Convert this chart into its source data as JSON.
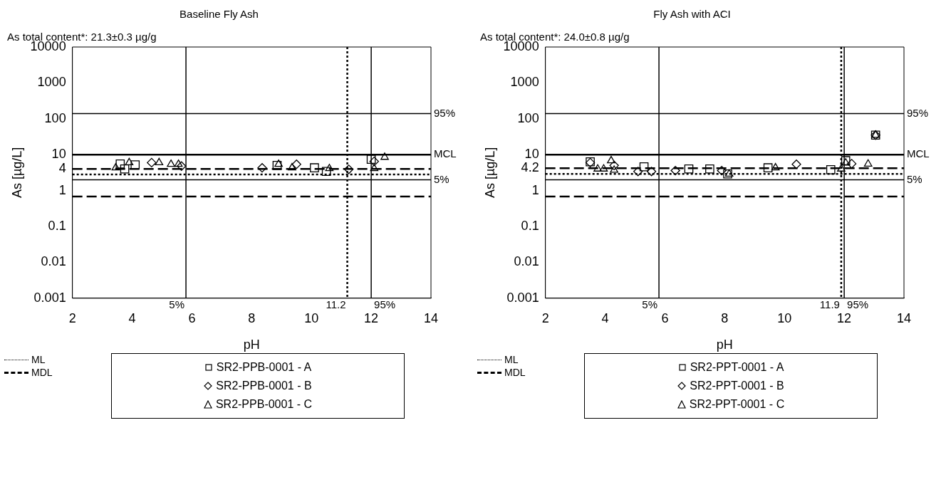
{
  "chart_data": [
    {
      "type": "scatter",
      "title": "Baseline Fly Ash",
      "subtitle": "As total content*: 21.3±0.3 µg/g",
      "xlabel": "pH",
      "ylabel": "As [µg/L]",
      "xlim": [
        2,
        14
      ],
      "xticks": [
        2,
        4,
        6,
        8,
        10,
        12,
        14
      ],
      "ylim": [
        0.001,
        10000
      ],
      "yticks": [
        0.001,
        0.01,
        0.1,
        1,
        4,
        10,
        100,
        1000,
        10000
      ],
      "log": "y",
      "grid": false,
      "legend": "bottom",
      "annotations": [
        "95%",
        "5%",
        "5%",
        "95%"
      ],
      "series": [
        {
          "name": "SR2-PPB-0001 - A",
          "color": "#000000",
          "marker": "square",
          "x": [
            3.75,
            4.1,
            3.6,
            8.85,
            10.1,
            10.5,
            12.0
          ],
          "values": [
            4.0,
            5.2,
            5.5,
            5.0,
            4.3,
            3.4,
            7.4
          ]
        },
        {
          "name": "SR2-PPB-0001 - B",
          "color": "#000000",
          "marker": "diamond",
          "x": [
            4.65,
            5.65,
            8.35,
            9.5,
            11.25,
            12.1
          ],
          "values": [
            6.0,
            4.8,
            4.3,
            5.4,
            3.9,
            6.5
          ]
        },
        {
          "name": "SR2-PPB-0001 - C",
          "color": "#000000",
          "marker": "triangle",
          "x": [
            3.45,
            3.9,
            4.9,
            5.3,
            5.55,
            8.9,
            9.35,
            10.6,
            12.1,
            12.45
          ],
          "values": [
            4.3,
            6.0,
            6.0,
            5.4,
            5.4,
            5.4,
            4.3,
            4.1,
            4.1,
            8.5
          ]
        }
      ],
      "ref_lines": [
        {
          "axis": "y",
          "value": 140,
          "line_style": "solid"
        },
        {
          "axis": "y",
          "value": 10,
          "label": "MCL",
          "line_style": "solid"
        },
        {
          "axis": "y",
          "value": 4,
          "line_style": "dashed"
        },
        {
          "axis": "y",
          "value": 2.8,
          "label": "ML",
          "line_style": "dotted"
        },
        {
          "axis": "y",
          "value": 2,
          "line_style": "solid"
        },
        {
          "axis": "y",
          "value": 0.68,
          "label": "MDL",
          "line_style": "dashed"
        },
        {
          "axis": "x",
          "value": 5.8,
          "line_style": "solid"
        },
        {
          "axis": "x",
          "value": 11.2,
          "label": "11.2",
          "line_style": "dotted"
        },
        {
          "axis": "x",
          "value": 12,
          "line_style": "solid"
        }
      ]
    },
    {
      "type": "scatter",
      "title": "Fly Ash with ACI",
      "subtitle": "As total content*: 24.0±0.8 µg/g",
      "xlabel": "pH",
      "ylabel": "As [µg/L]",
      "xlim": [
        2,
        14
      ],
      "xticks": [
        2,
        4,
        6,
        8,
        10,
        12,
        14
      ],
      "ylim": [
        0.001,
        10000
      ],
      "yticks": [
        0.001,
        0.01,
        0.1,
        1,
        4.2,
        10,
        100,
        1000,
        10000
      ],
      "log": "y",
      "grid": false,
      "legend": "bottom",
      "annotations": [
        "95%",
        "5%",
        "5%",
        "95%"
      ],
      "series": [
        {
          "name": "SR2-PPT-0001 - A",
          "color": "#000000",
          "marker": "square",
          "x": [
            3.5,
            5.3,
            6.8,
            7.5,
            8.1,
            9.45,
            11.55,
            12.05,
            13.05
          ],
          "values": [
            6.3,
            4.6,
            4.0,
            4.0,
            2.9,
            4.3,
            3.8,
            6.8,
            35
          ]
        },
        {
          "name": "SR2-PPT-0001 - B",
          "color": "#000000",
          "marker": "diamond",
          "x": [
            3.5,
            4.3,
            5.1,
            5.55,
            6.35,
            7.9,
            10.4,
            12.25,
            13.05
          ],
          "values": [
            6.0,
            5.0,
            3.4,
            3.4,
            3.6,
            3.6,
            5.4,
            5.6,
            35
          ]
        },
        {
          "name": "SR2-PPT-0001 - C",
          "color": "#000000",
          "marker": "triangle",
          "x": [
            3.75,
            3.95,
            4.2,
            4.3,
            8.15,
            9.7,
            11.9,
            12.05,
            12.8,
            13.05
          ],
          "values": [
            4.0,
            4.0,
            6.8,
            3.7,
            2.9,
            4.3,
            4.0,
            5.9,
            5.5,
            35
          ]
        }
      ],
      "ref_lines": [
        {
          "axis": "y",
          "value": 140,
          "line_style": "solid"
        },
        {
          "axis": "y",
          "value": 10,
          "label": "MCL",
          "line_style": "solid"
        },
        {
          "axis": "y",
          "value": 4.2,
          "line_style": "dashed"
        },
        {
          "axis": "y",
          "value": 2.9,
          "label": "ML",
          "line_style": "dotted"
        },
        {
          "axis": "y",
          "value": 2,
          "line_style": "solid"
        },
        {
          "axis": "y",
          "value": 0.68,
          "label": "MDL",
          "line_style": "dashed"
        },
        {
          "axis": "x",
          "value": 5.8,
          "line_style": "solid"
        },
        {
          "axis": "x",
          "value": 11.9,
          "label": "11.9",
          "line_style": "dotted"
        },
        {
          "axis": "x",
          "value": 12,
          "line_style": "solid"
        }
      ]
    }
  ]
}
